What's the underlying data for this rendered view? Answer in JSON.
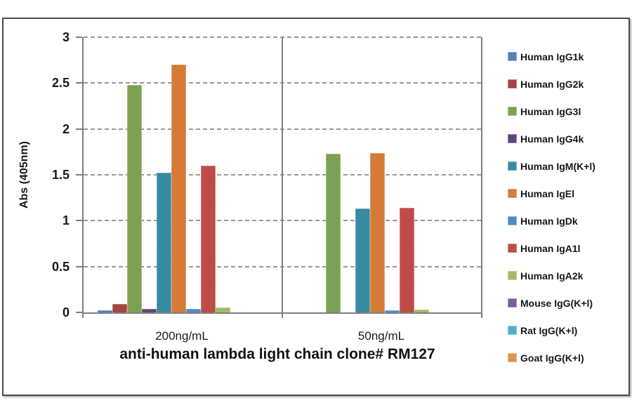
{
  "chart_data": {
    "type": "bar",
    "title": "anti-human lambda light chain clone# RM127",
    "ylabel": "Abs (405nm)",
    "xlabel": "",
    "categories": [
      "200ng/mL",
      "50ng/mL"
    ],
    "ylim": [
      0,
      3
    ],
    "y_ticks": [
      0,
      0.5,
      1,
      1.5,
      2,
      2.5,
      3
    ],
    "y_tick_labels": [
      "0",
      "0.5",
      "1",
      "1.5",
      "2",
      "2.5",
      "3"
    ],
    "grid": "dashed-horizontal",
    "legend_position": "right",
    "series": [
      {
        "name": "Human IgG1k",
        "color": "#4F81BD",
        "values": [
          0.02,
          0
        ]
      },
      {
        "name": "Human IgG2k",
        "color": "#A5433E",
        "values": [
          0.09,
          0
        ]
      },
      {
        "name": "Human IgG3l",
        "color": "#7DA153",
        "values": [
          2.48,
          1.73
        ]
      },
      {
        "name": "Human IgG4k",
        "color": "#5C4776",
        "values": [
          0.04,
          0
        ]
      },
      {
        "name": "Human IgM(K+l)",
        "color": "#378BA0",
        "values": [
          1.52,
          1.13
        ]
      },
      {
        "name": "Human IgEl",
        "color": "#D47B35",
        "values": [
          2.7,
          1.74
        ]
      },
      {
        "name": "Human IgDk",
        "color": "#4E8AD0",
        "values": [
          0.04,
          0.02
        ]
      },
      {
        "name": "Human IgA1l",
        "color": "#BF4B48",
        "values": [
          1.6,
          1.14
        ]
      },
      {
        "name": "Human IgA2k",
        "color": "#9FBC61",
        "values": [
          0.05,
          0.03
        ]
      },
      {
        "name": "Mouse IgG(K+l)",
        "color": "#7A5C9E",
        "values": [
          0,
          0
        ]
      },
      {
        "name": "Rat IgG(K+l)",
        "color": "#55AECB",
        "values": [
          0,
          0
        ]
      },
      {
        "name": "Goat IgG(K+l)",
        "color": "#DE9350",
        "values": [
          0,
          0
        ]
      }
    ],
    "axis_color": "#7f7f7f",
    "gridline_color": "#979797"
  }
}
